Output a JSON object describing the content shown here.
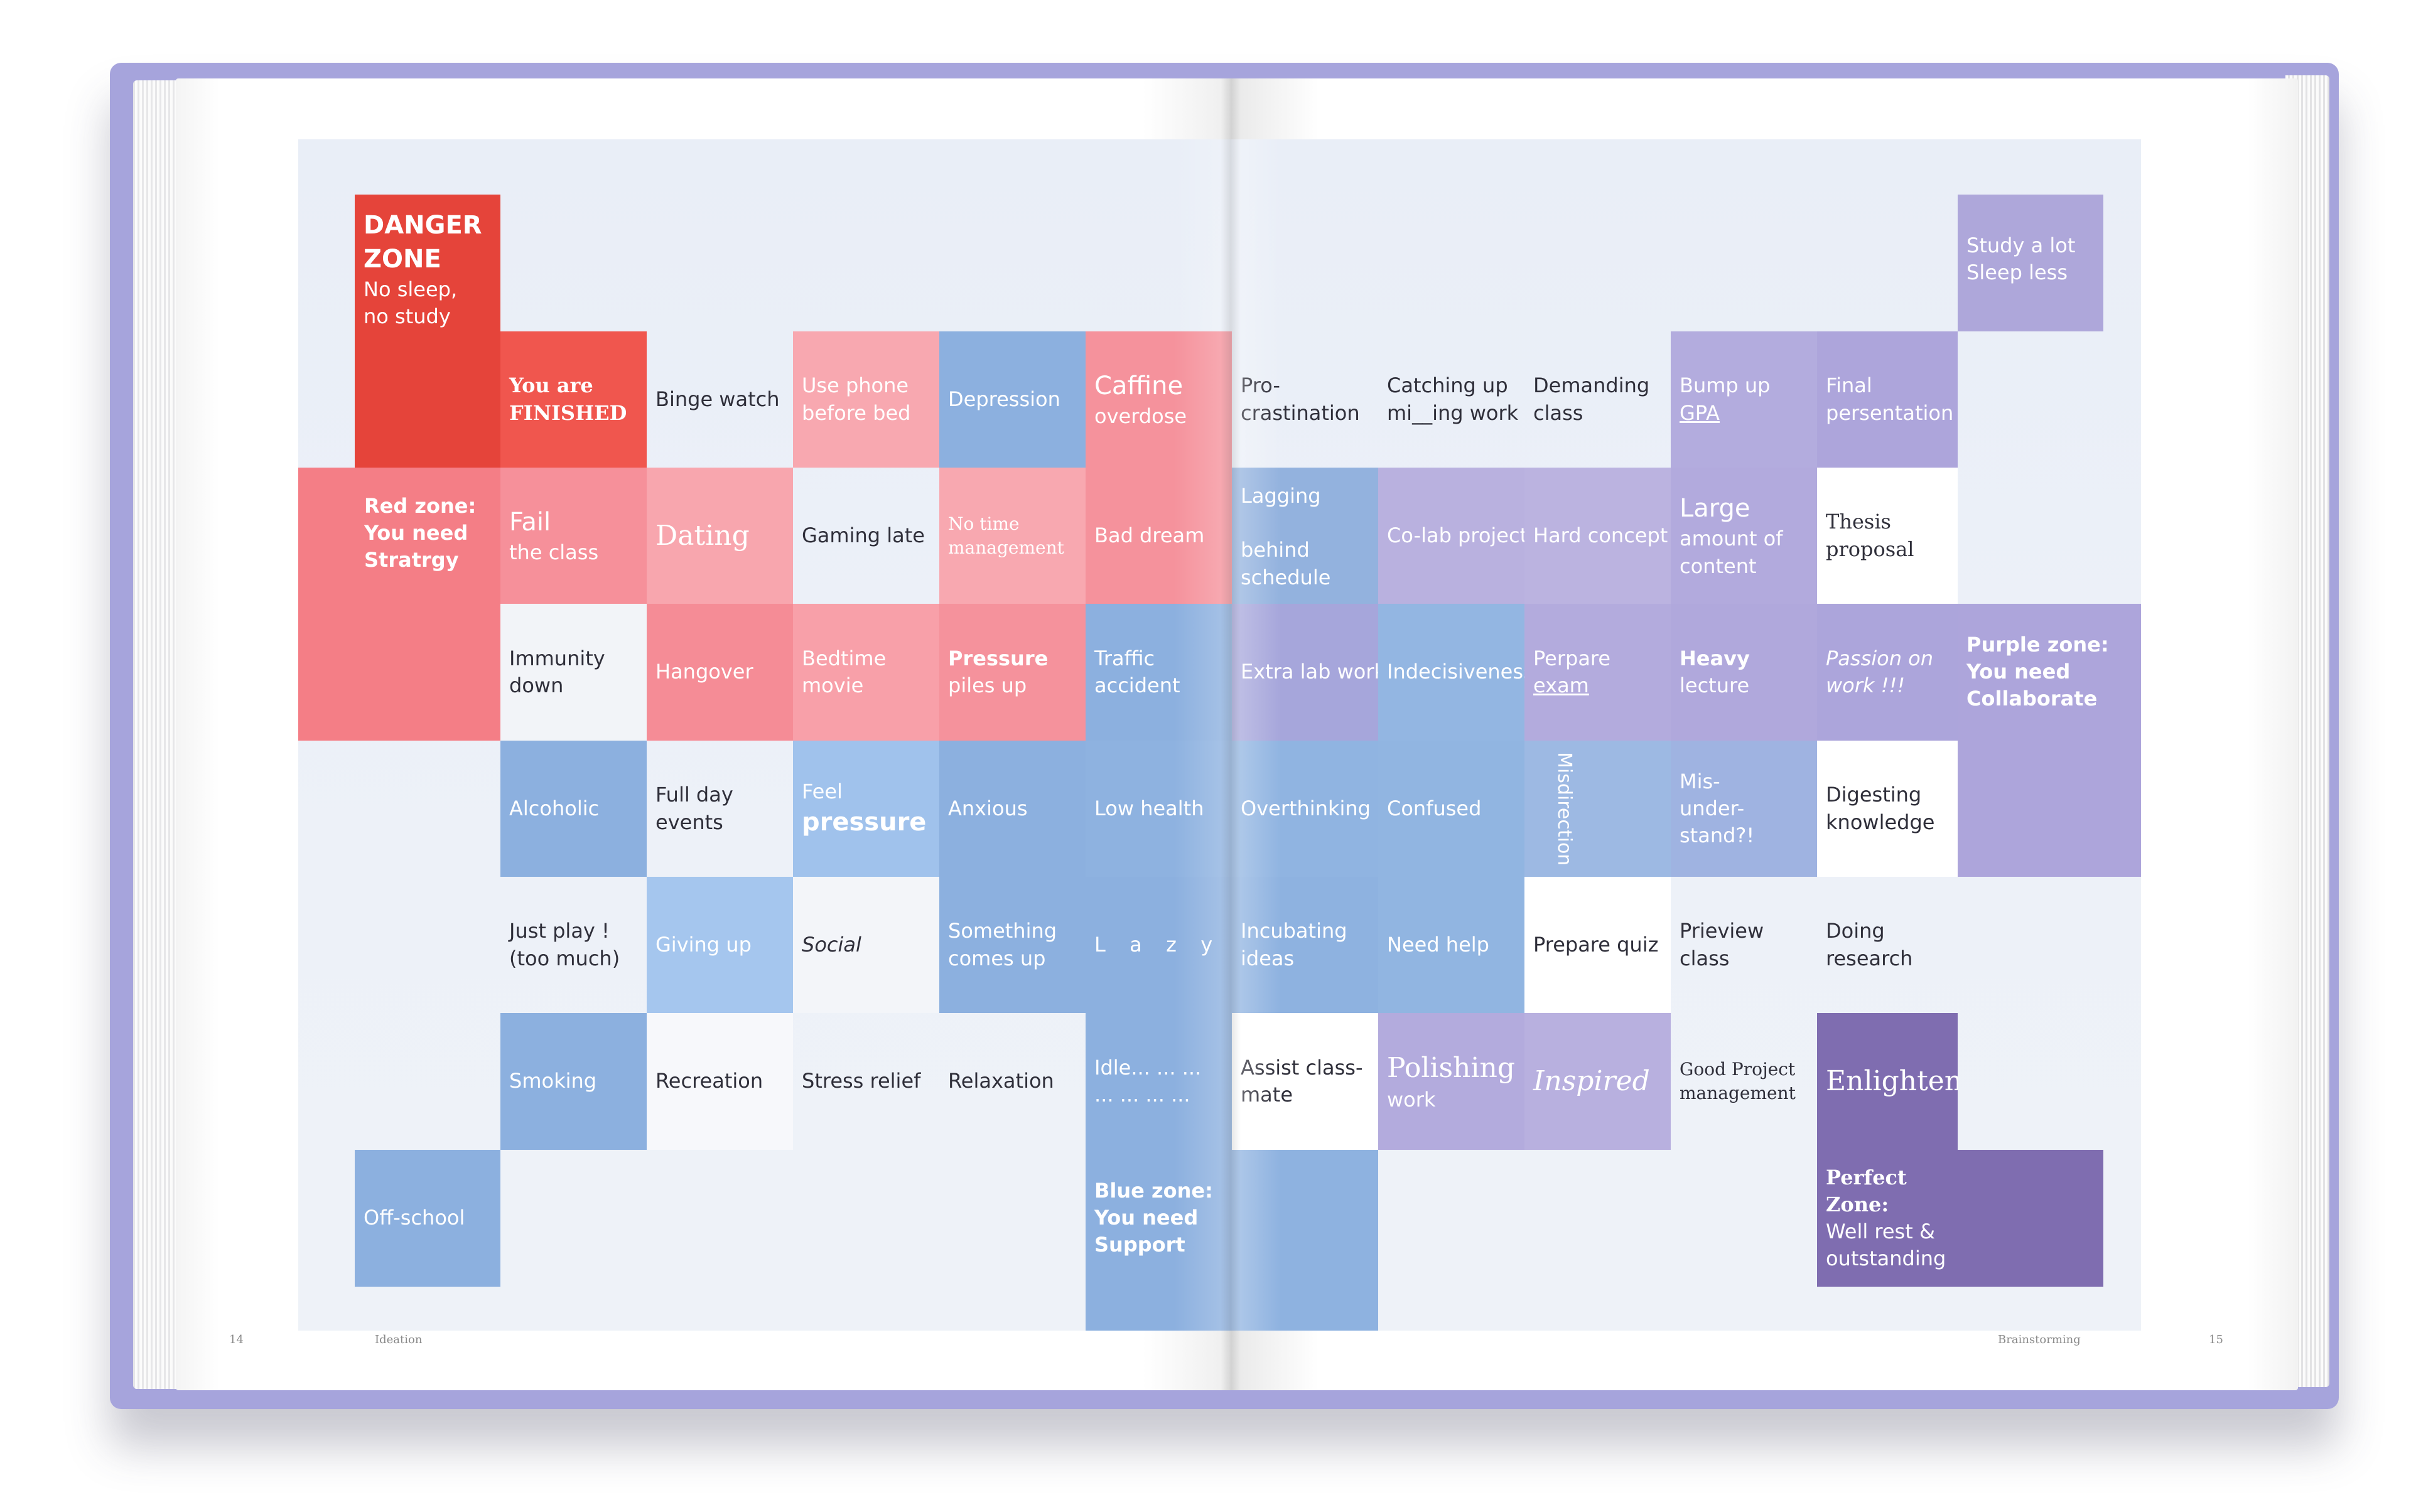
{
  "book": {
    "left_page_number": "14",
    "right_page_number": "15",
    "left_running_head": "Ideation",
    "right_running_head": "Brainstorming",
    "cover_color": "#a6a4dc"
  },
  "colors": {
    "red_dark": "#e5443a",
    "red_mid": "#f0564e",
    "pink": "#f5929c",
    "pink_light": "#f8a8b0",
    "blue": "#8cb0df",
    "blue_light": "#a3c4ec",
    "lavender": "#ada5db",
    "lavender_light": "#c4bde4",
    "purple_dark": "#7f6db0",
    "board_bg": "#ebeff7"
  },
  "cells": [
    {
      "id": "danger-zone",
      "lines": [
        "DANGER",
        "ZONE",
        "No sleep,",
        "no study"
      ]
    },
    {
      "id": "study-a-lot",
      "lines": [
        "Study a lot",
        "Sleep less"
      ]
    },
    {
      "id": "you-are-finished",
      "lines": [
        "You are",
        "FINISHED"
      ]
    },
    {
      "id": "binge-watch",
      "lines": [
        "Binge watch"
      ]
    },
    {
      "id": "use-phone",
      "lines": [
        "Use phone",
        "before bed"
      ]
    },
    {
      "id": "depression",
      "lines": [
        "Depression"
      ]
    },
    {
      "id": "caffine",
      "lines": [
        "Caffine",
        "overdose"
      ]
    },
    {
      "id": "procrastination",
      "lines": [
        "Pro-",
        "crastination"
      ]
    },
    {
      "id": "catching-up",
      "lines": [
        "Catching up",
        "mi__ing work"
      ]
    },
    {
      "id": "demanding-class",
      "lines": [
        "Demanding",
        "class"
      ]
    },
    {
      "id": "bump-up-gpa",
      "lines": [
        "Bump up",
        "GPA"
      ]
    },
    {
      "id": "final-presentation",
      "lines": [
        "Final",
        "persentation"
      ]
    },
    {
      "id": "red-zone",
      "lines": [
        "Red zone:",
        "You need",
        "Stratrgy"
      ]
    },
    {
      "id": "fail-the-class",
      "lines": [
        "Fail",
        "the class"
      ]
    },
    {
      "id": "dating",
      "lines": [
        "Dating"
      ]
    },
    {
      "id": "gaming-late",
      "lines": [
        "Gaming late"
      ]
    },
    {
      "id": "no-time",
      "lines": [
        "No time",
        "management"
      ]
    },
    {
      "id": "bad-dream",
      "lines": [
        "Bad dream"
      ]
    },
    {
      "id": "lagging",
      "lines": [
        "Lagging",
        "",
        "behind",
        "schedule"
      ]
    },
    {
      "id": "co-lab",
      "lines": [
        "Co-lab project"
      ]
    },
    {
      "id": "hard-concept",
      "lines": [
        "Hard concept"
      ]
    },
    {
      "id": "large-amount",
      "lines": [
        "Large",
        "amount of",
        "content"
      ]
    },
    {
      "id": "thesis",
      "lines": [
        "Thesis",
        "proposal"
      ]
    },
    {
      "id": "immunity",
      "lines": [
        "Immunity",
        "down"
      ]
    },
    {
      "id": "hangover",
      "lines": [
        "Hangover"
      ]
    },
    {
      "id": "bedtime-movie",
      "lines": [
        "Bedtime",
        "movie"
      ]
    },
    {
      "id": "pressure-piles",
      "lines": [
        "Pressure",
        "piles up"
      ]
    },
    {
      "id": "traffic",
      "lines": [
        "Traffic",
        "accident"
      ]
    },
    {
      "id": "extra-lab",
      "lines": [
        "Extra lab work"
      ]
    },
    {
      "id": "indecisiveness",
      "lines": [
        "Indecisiveness"
      ]
    },
    {
      "id": "perpare-exam",
      "lines": [
        "Perpare",
        "exam"
      ]
    },
    {
      "id": "heavy-lecture",
      "lines": [
        "Heavy",
        "lecture"
      ]
    },
    {
      "id": "passion",
      "lines": [
        "Passion on",
        "work !!!"
      ]
    },
    {
      "id": "purple-zone",
      "lines": [
        "Purple zone:",
        "You need",
        "Collaborate"
      ]
    },
    {
      "id": "alcoholic",
      "lines": [
        "Alcoholic"
      ]
    },
    {
      "id": "full-day",
      "lines": [
        "Full day",
        "events"
      ]
    },
    {
      "id": "feel-pressure",
      "lines": [
        "Feel",
        "pressure"
      ]
    },
    {
      "id": "anxious",
      "lines": [
        "Anxious"
      ]
    },
    {
      "id": "low-health",
      "lines": [
        "Low health"
      ]
    },
    {
      "id": "overthinking",
      "lines": [
        "Overthinking"
      ]
    },
    {
      "id": "confused",
      "lines": [
        "Confused"
      ]
    },
    {
      "id": "misdirection",
      "lines": [
        "Misdirection"
      ]
    },
    {
      "id": "misunderstand",
      "lines": [
        "Mis-",
        "under-",
        "stand?!"
      ]
    },
    {
      "id": "digesting",
      "lines": [
        "Digesting",
        "knowledge"
      ]
    },
    {
      "id": "just-play",
      "lines": [
        "Just play !",
        "(too much)"
      ]
    },
    {
      "id": "giving-up",
      "lines": [
        "Giving up"
      ]
    },
    {
      "id": "social",
      "lines": [
        "Social"
      ]
    },
    {
      "id": "something",
      "lines": [
        "Something",
        "comes up"
      ]
    },
    {
      "id": "lazy",
      "lines": [
        "L  a  z  y"
      ]
    },
    {
      "id": "incubating",
      "lines": [
        "Incubating",
        "ideas"
      ]
    },
    {
      "id": "need-help",
      "lines": [
        "Need help"
      ]
    },
    {
      "id": "prepare-quiz",
      "lines": [
        "Prepare quiz"
      ]
    },
    {
      "id": "prieview",
      "lines": [
        "Prieview",
        "class"
      ]
    },
    {
      "id": "doing-research",
      "lines": [
        "Doing",
        "research"
      ]
    },
    {
      "id": "smoking",
      "lines": [
        "Smoking"
      ]
    },
    {
      "id": "recreation",
      "lines": [
        "Recreation"
      ]
    },
    {
      "id": "stress-relief",
      "lines": [
        "Stress relief"
      ]
    },
    {
      "id": "relaxation",
      "lines": [
        "Relaxation"
      ]
    },
    {
      "id": "idle",
      "lines": [
        "Idle... ... ...",
        "... ... ... ..."
      ]
    },
    {
      "id": "assist",
      "lines": [
        "Assist class-",
        "mate"
      ]
    },
    {
      "id": "polishing",
      "lines": [
        "Polishing",
        "work"
      ]
    },
    {
      "id": "inspired",
      "lines": [
        "Inspired"
      ]
    },
    {
      "id": "good-project",
      "lines": [
        "Good Project",
        "management"
      ]
    },
    {
      "id": "enlightend",
      "lines": [
        "Enlightend"
      ]
    },
    {
      "id": "off-school",
      "lines": [
        "Off-school"
      ]
    },
    {
      "id": "blue-zone",
      "lines": [
        "Blue zone:",
        "You need",
        "Support"
      ]
    },
    {
      "id": "perfect-zone",
      "lines": [
        "Perfect",
        "Zone:",
        "Well rest &",
        "outstanding"
      ]
    }
  ]
}
